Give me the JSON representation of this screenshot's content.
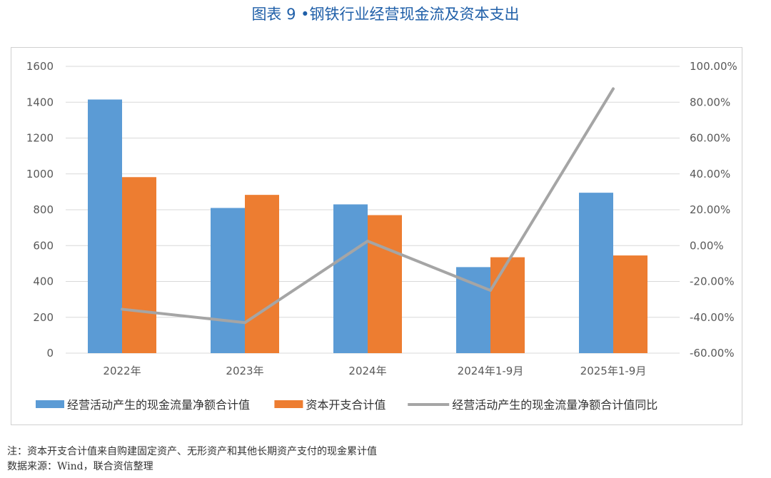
{
  "title": "图表 9 •钢铁行业经营现金流及资本支出",
  "chart_data": {
    "type": "bar",
    "categories": [
      "2022年",
      "2023年",
      "2024年",
      "2024年1-9月",
      "2025年1-9月"
    ],
    "series": [
      {
        "name": "经营活动产生的现金流量净额合计值",
        "type": "bar",
        "axis": "left",
        "color": "#5b9bd5",
        "values": [
          1415,
          810,
          830,
          480,
          895
        ]
      },
      {
        "name": "资本开支合计值",
        "type": "bar",
        "axis": "left",
        "color": "#ed7d31",
        "values": [
          982,
          883,
          770,
          535,
          545
        ]
      },
      {
        "name": "经营活动产生的现金流量净额合计值同比",
        "type": "line",
        "axis": "right",
        "color": "#a5a5a5",
        "values": [
          -35.5,
          -43.0,
          2.5,
          -25.0,
          87.5
        ]
      }
    ],
    "y_left": {
      "min": 0,
      "max": 1600,
      "ticks": [
        "0",
        "200",
        "400",
        "600",
        "800",
        "1000",
        "1200",
        "1400",
        "1600"
      ]
    },
    "y_right": {
      "min": -60,
      "max": 100,
      "ticks": [
        "-60.00%",
        "-40.00%",
        "-20.00%",
        "0.00%",
        "20.00%",
        "40.00%",
        "60.00%",
        "80.00%",
        "100.00%"
      ]
    },
    "grid": true,
    "legend_position": "bottom"
  },
  "notes": {
    "line1": "注：资本开支合计值来自购建固定资产、无形资产和其他长期资产支付的现金累计值",
    "line2": "数据来源：Wind，联合资信整理"
  }
}
